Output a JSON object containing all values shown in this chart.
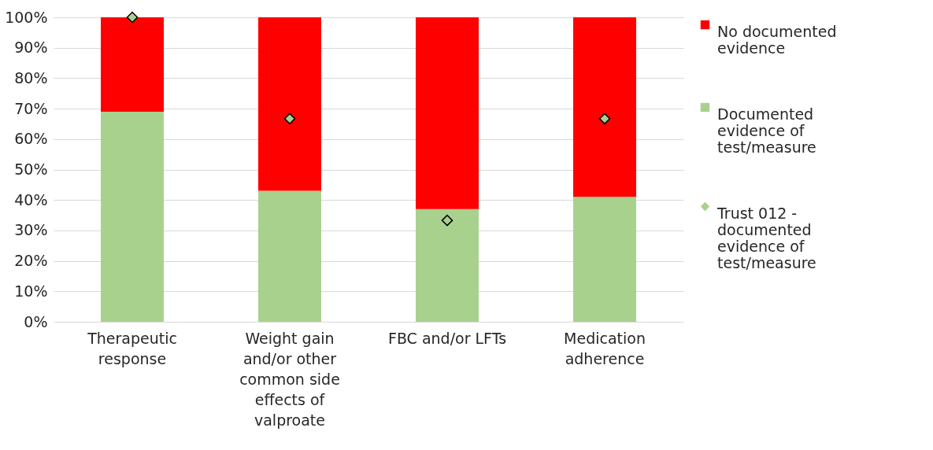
{
  "chart_data": {
    "type": "bar",
    "stacked": true,
    "categories": [
      "Therapeutic response",
      "Weight gain and/or other common side effects of valproate",
      "FBC and/or LFTs",
      "Medication adherence"
    ],
    "series": [
      {
        "name": "Documented evidence of test/measure",
        "color": "#a9d18e",
        "values": [
          69,
          43,
          37,
          41
        ]
      },
      {
        "name": "No documented evidence",
        "color": "#ff0000",
        "values": [
          31,
          57,
          63,
          59
        ]
      },
      {
        "name": "Trust 012 - documented evidence of test/measure",
        "type": "scatter",
        "marker": "diamond",
        "color": "#a9d18e",
        "x": [
          "Therapeutic response",
          "Weight gain and/or other common side effects of valproate",
          "FBC and/or LFTs",
          "Medication adherence"
        ],
        "values": [
          100,
          66.7,
          33.3,
          66.7
        ]
      }
    ],
    "ylim": [
      0,
      100
    ],
    "yticks": [
      {
        "value": 0,
        "label": "0%"
      },
      {
        "value": 10,
        "label": "10%"
      },
      {
        "value": 20,
        "label": "20%"
      },
      {
        "value": 30,
        "label": "30%"
      },
      {
        "value": 40,
        "label": "40%"
      },
      {
        "value": 50,
        "label": "50%"
      },
      {
        "value": 60,
        "label": "60%"
      },
      {
        "value": 70,
        "label": "70%"
      },
      {
        "value": 80,
        "label": "80%"
      },
      {
        "value": 90,
        "label": "90%"
      },
      {
        "value": 100,
        "label": "100%"
      }
    ],
    "grid": "y",
    "legend": "right"
  }
}
